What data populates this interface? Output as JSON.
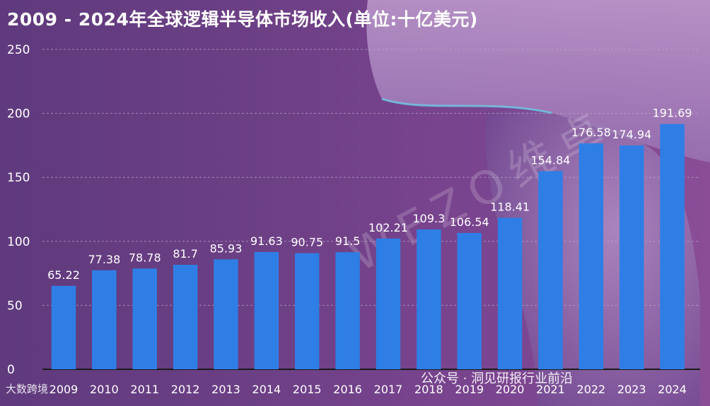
{
  "title": "2009 - 2024年全球逻辑半导体市场收入(单位:十亿美元)",
  "watermark": {
    "diagonal": "WEZO维卓",
    "bottom_left": "大数跨境",
    "bottom_right": "公众号 · 洞见研报行业前沿"
  },
  "colors": {
    "bar": "#2f7ee6",
    "text": "#ffffff",
    "grid": "#b9a9c9"
  },
  "chart_data": {
    "type": "bar",
    "title": "2009 - 2024年全球逻辑半导体市场收入(单位:十亿美元)",
    "categories": [
      "2009",
      "2010",
      "2011",
      "2012",
      "2013",
      "2014",
      "2015",
      "2016",
      "2017",
      "2018",
      "2019",
      "2020",
      "2021",
      "2022",
      "2023",
      "2024"
    ],
    "values": [
      65.22,
      77.38,
      78.78,
      81.7,
      85.93,
      91.63,
      90.75,
      91.5,
      102.21,
      109.3,
      106.54,
      118.41,
      154.84,
      176.58,
      174.94,
      191.69
    ],
    "value_labels": [
      "65.22",
      "77.38",
      "78.78",
      "81.7",
      "85.93",
      "91.63",
      "90.75",
      "91.5",
      "102.21",
      "109.3",
      "106.54",
      "118.41",
      "154.84",
      "176.58",
      "174.94",
      "191.69"
    ],
    "ylim": [
      0,
      250
    ],
    "yticks": [
      0,
      50,
      100,
      150,
      200,
      250
    ],
    "grid": true,
    "xlabel": "",
    "ylabel": ""
  }
}
